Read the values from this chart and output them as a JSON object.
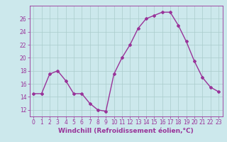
{
  "x": [
    0,
    1,
    2,
    3,
    4,
    5,
    6,
    7,
    8,
    9,
    10,
    11,
    12,
    13,
    14,
    15,
    16,
    17,
    18,
    19,
    20,
    21,
    22,
    23
  ],
  "y": [
    14.5,
    14.5,
    17.5,
    18.0,
    16.5,
    14.5,
    14.5,
    13.0,
    12.0,
    11.8,
    17.5,
    20.0,
    22.0,
    24.5,
    26.0,
    26.5,
    27.0,
    27.0,
    25.0,
    22.5,
    19.5,
    17.0,
    15.5,
    14.8
  ],
  "line_color": "#993399",
  "marker": "D",
  "marker_size": 2,
  "line_width": 1.0,
  "bg_color": "#cce8ec",
  "grid_color": "#aacccc",
  "xlabel": "Windchill (Refroidissement éolien,°C)",
  "xlabel_fontsize": 6.5,
  "tick_color": "#993399",
  "tick_fontsize": 5.5,
  "ylim": [
    11,
    28
  ],
  "yticks": [
    12,
    14,
    16,
    18,
    20,
    22,
    24,
    26
  ],
  "xlim": [
    -0.5,
    23.5
  ],
  "xticks": [
    0,
    1,
    2,
    3,
    4,
    5,
    6,
    7,
    8,
    9,
    10,
    11,
    12,
    13,
    14,
    15,
    16,
    17,
    18,
    19,
    20,
    21,
    22,
    23
  ]
}
